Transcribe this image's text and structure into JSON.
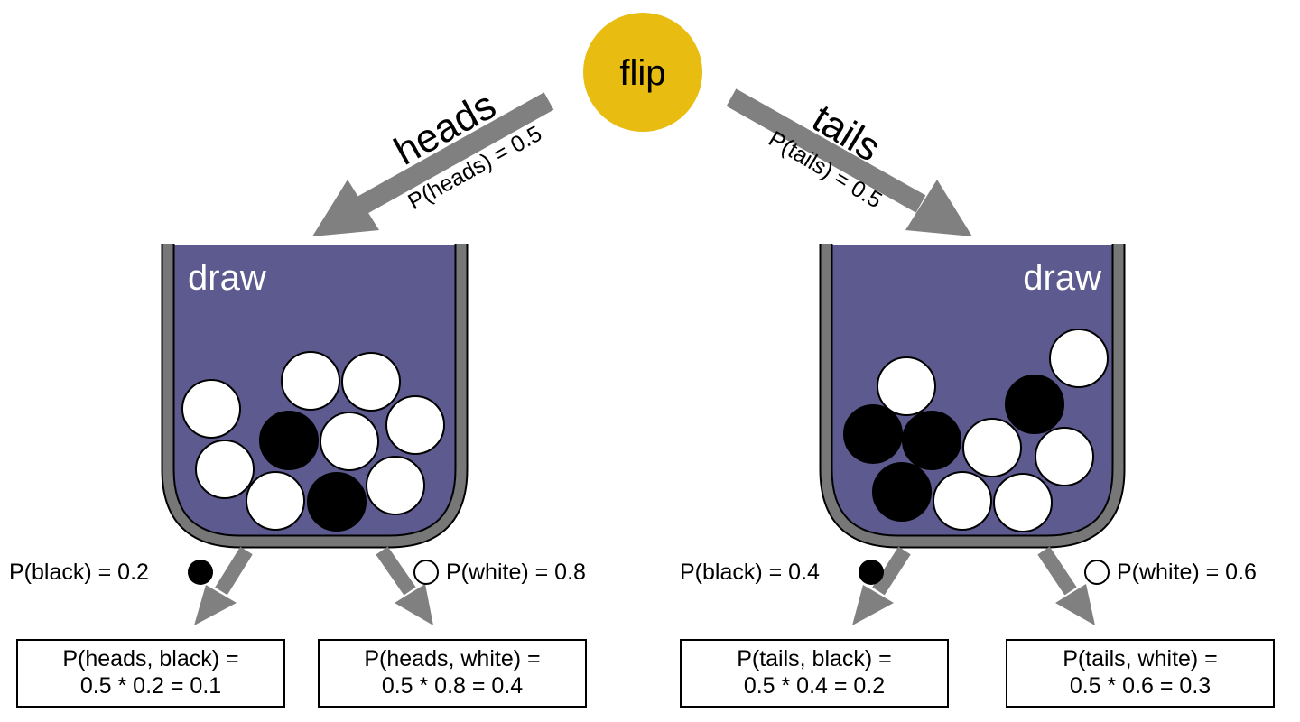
{
  "flip": {
    "label": "flip",
    "color": "#E8BC10"
  },
  "heads": {
    "label": "heads",
    "prob": "P(heads) = 0.5"
  },
  "tails": {
    "label": "tails",
    "prob": "P(tails) = 0.5"
  },
  "left_cup": {
    "label": "draw",
    "balls": [
      "white",
      "white",
      "white",
      "white",
      "black",
      "white",
      "white",
      "white",
      "black",
      "white"
    ]
  },
  "right_cup": {
    "label": "draw",
    "balls": [
      "white",
      "white",
      "black",
      "black",
      "black",
      "white",
      "white",
      "black",
      "white",
      "white"
    ]
  },
  "colors": {
    "cup_fill": "#5C5A8E",
    "cup_wall": "#777777",
    "arrow": "#808080"
  },
  "left_black": {
    "label": "P(black) = 0.2"
  },
  "left_white": {
    "label": "P(white) = 0.8"
  },
  "right_black": {
    "label": "P(black) = 0.4"
  },
  "right_white": {
    "label": "P(white) = 0.6"
  },
  "outcomes": [
    {
      "line1": "P(heads, black) =",
      "line2": "0.5 * 0.2 = 0.1"
    },
    {
      "line1": "P(heads, white) =",
      "line2": "0.5 * 0.8 = 0.4"
    },
    {
      "line1": "P(tails, black) =",
      "line2": "0.5 * 0.4 = 0.2"
    },
    {
      "line1": "P(tails, white) =",
      "line2": "0.5 * 0.6 = 0.3"
    }
  ]
}
